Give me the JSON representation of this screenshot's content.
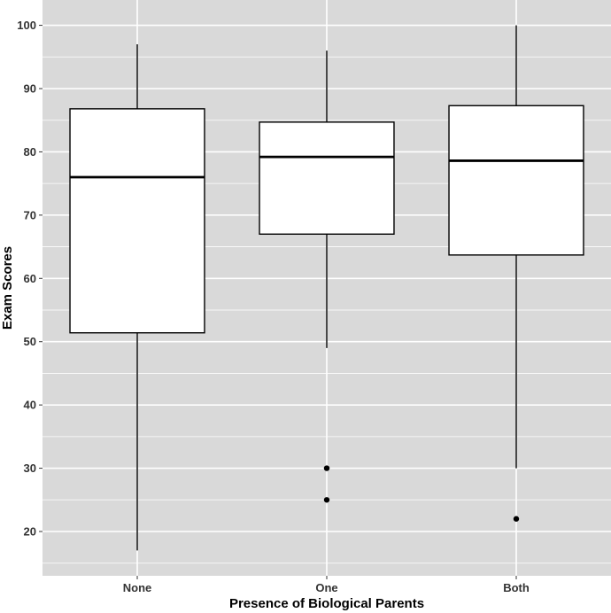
{
  "chart_data": {
    "type": "boxplot",
    "title": "",
    "xlabel": "Presence of Biological Parents",
    "ylabel": "Exam Scores",
    "ylim": [
      13,
      104
    ],
    "y_ticks": [
      20,
      30,
      40,
      50,
      60,
      70,
      80,
      90,
      100
    ],
    "grid": true,
    "categories": [
      "None",
      "One",
      "Both"
    ],
    "boxes": [
      {
        "category": "None",
        "min": 17,
        "q1": 51.4,
        "median": 76,
        "q3": 86.8,
        "max": 97,
        "outliers": []
      },
      {
        "category": "One",
        "min": 49,
        "q1": 67,
        "median": 79.2,
        "q3": 84.7,
        "max": 96,
        "outliers": [
          30,
          25
        ]
      },
      {
        "category": "Both",
        "min": 30,
        "q1": 63.7,
        "median": 78.6,
        "q3": 87.3,
        "max": 100,
        "outliers": [
          22
        ]
      }
    ],
    "colors": {
      "panel_background": "#d9d9d9",
      "grid_major": "#ffffff",
      "grid_minor": "#ebebeb",
      "box_fill": "#ffffff",
      "box_stroke": "#000000",
      "outlier": "#000000",
      "tick_label": "#333333"
    }
  }
}
